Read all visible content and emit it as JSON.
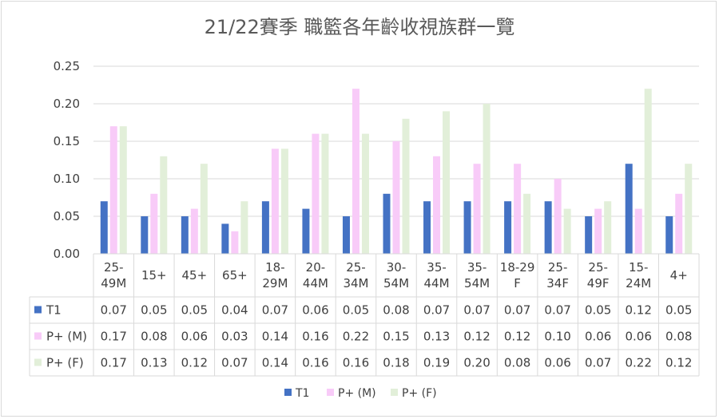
{
  "chart_data": {
    "type": "bar",
    "title": "21/22賽季 職籃各年齡收視族群一覽",
    "categories": [
      [
        "25-",
        "49M"
      ],
      [
        "15+"
      ],
      [
        "45+"
      ],
      [
        "65+"
      ],
      [
        "18-",
        "29M"
      ],
      [
        "20-",
        "44M"
      ],
      [
        "25-",
        "34M"
      ],
      [
        "30-",
        "54M"
      ],
      [
        "35-",
        "44M"
      ],
      [
        "35-",
        "54M"
      ],
      [
        "18-29",
        "F"
      ],
      [
        "25-",
        "34F"
      ],
      [
        "25-",
        "49F"
      ],
      [
        "15-",
        "24M"
      ],
      [
        "4+"
      ]
    ],
    "series": [
      {
        "name": "T1",
        "color": "#4472c4",
        "values": [
          0.07,
          0.05,
          0.05,
          0.04,
          0.07,
          0.06,
          0.05,
          0.08,
          0.07,
          0.07,
          0.07,
          0.07,
          0.05,
          0.12,
          0.05
        ]
      },
      {
        "name": "P+ (M)",
        "color": "#f8cbf8",
        "values": [
          0.17,
          0.08,
          0.06,
          0.03,
          0.14,
          0.16,
          0.22,
          0.15,
          0.13,
          0.12,
          0.12,
          0.1,
          0.06,
          0.06,
          0.08
        ]
      },
      {
        "name": "P+ (F)",
        "color": "#e2efd9",
        "values": [
          0.17,
          0.13,
          0.12,
          0.07,
          0.14,
          0.16,
          0.16,
          0.18,
          0.19,
          0.2,
          0.08,
          0.06,
          0.07,
          0.22,
          0.12
        ]
      }
    ],
    "yticks": [
      "0.00",
      "0.05",
      "0.10",
      "0.15",
      "0.20",
      "0.25"
    ],
    "ylim": [
      0,
      0.25
    ],
    "grid": true,
    "legend": "bottom",
    "data_table": true
  }
}
